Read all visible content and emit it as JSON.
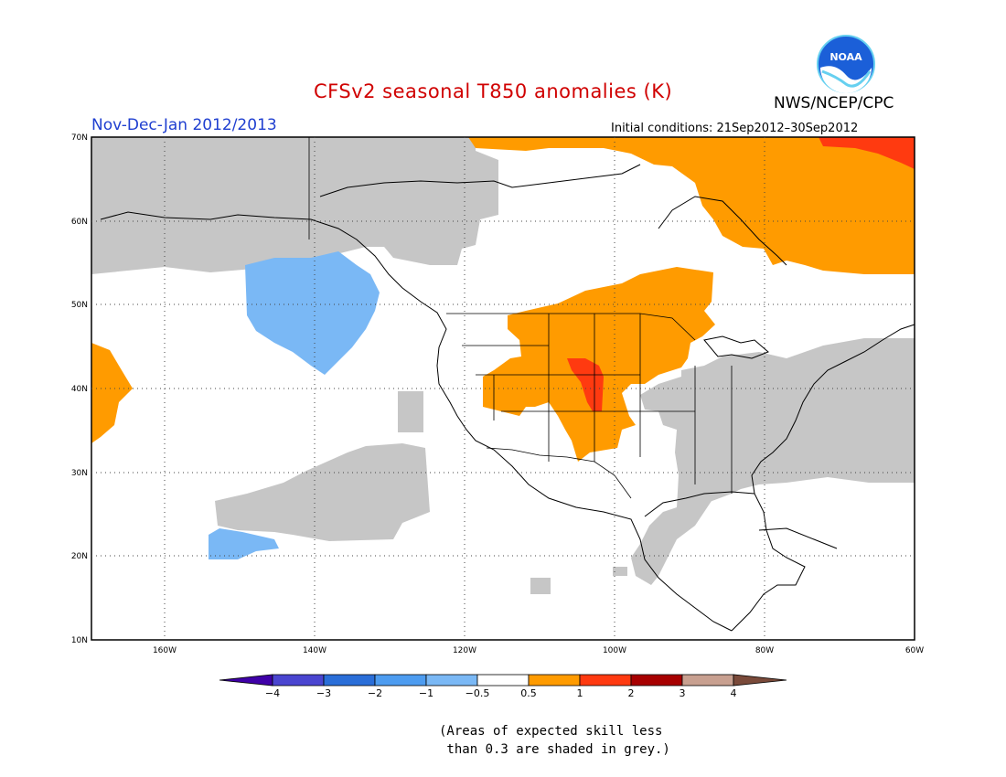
{
  "title": "CFSv2 seasonal T850 anomalies (K)",
  "agency": "NWS/NCEP/CPC",
  "logo_text": "NOAA",
  "season": "Nov-Dec-Jan 2012/2013",
  "initial_conditions": "Initial conditions: 21Sep2012–30Sep2012",
  "lat_labels": [
    "70N",
    "60N",
    "50N",
    "40N",
    "30N",
    "20N",
    "10N"
  ],
  "lon_labels": [
    "160W",
    "140W",
    "120W",
    "100W",
    "80W",
    "60W"
  ],
  "colorbar": {
    "labels": [
      "−4",
      "−3",
      "−2",
      "−1",
      "−0.5",
      "0.5",
      "1",
      "2",
      "3",
      "4"
    ],
    "colors": [
      "#3f00a8",
      "#4a45d0",
      "#2a6ed8",
      "#4d9cf0",
      "#7ab8f5",
      "#ffffff",
      "#ff9b00",
      "#ff3a10",
      "#a70000",
      "#c8a090",
      "#7a4a3a"
    ]
  },
  "colors": {
    "grey_low_skill": "#c6c6c6",
    "warm_05_1": "#ff9b00",
    "warm_1_2": "#ff3a10",
    "cool_m1_m05": "#7ab8f5"
  },
  "note_line1": "(Areas of expected skill less",
  "note_line2": " than 0.3 are shaded in grey.)"
}
